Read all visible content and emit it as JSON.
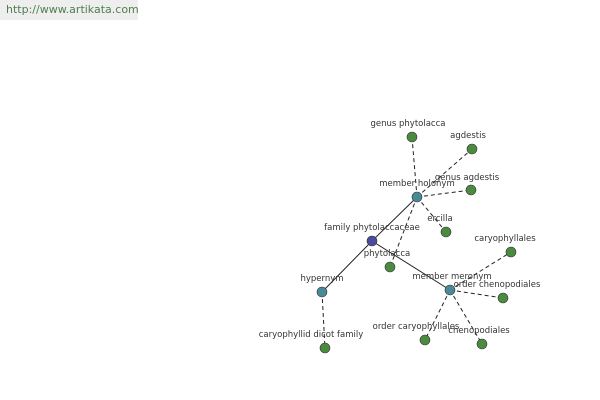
{
  "header": {
    "url": "http://www.artikata.com"
  },
  "nodes": [
    {
      "label": "family phytolaccaceae"
    },
    {
      "label": "member holonym"
    },
    {
      "label": "hypernym"
    },
    {
      "label": "member meronym"
    },
    {
      "label": "genus phytolacca"
    },
    {
      "label": "agdestis"
    },
    {
      "label": "genus agdestis"
    },
    {
      "label": "ercilla"
    },
    {
      "label": "phytolacca"
    },
    {
      "label": "caryophyllid dicot family"
    },
    {
      "label": "caryophyllales"
    },
    {
      "label": "order chenopodiales"
    },
    {
      "label": "order caryophyllales"
    },
    {
      "label": "chenopodiales"
    }
  ]
}
